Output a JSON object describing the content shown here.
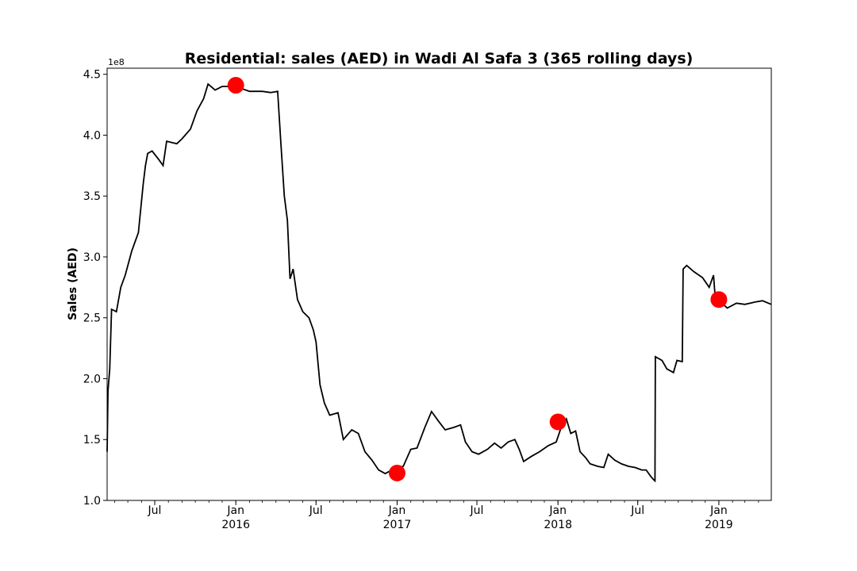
{
  "chart_data": {
    "type": "line",
    "title": "Residential: sales (AED) in Wadi Al Safa 3 (365 rolling days)",
    "ylabel": "Sales (AED)",
    "y_offset_label": "1e8",
    "ylim": [
      1.0,
      4.55
    ],
    "xlim": [
      "2015-03-15",
      "2019-04-30"
    ],
    "yticks": [
      {
        "value": 1.0,
        "label": "1.0"
      },
      {
        "value": 1.5,
        "label": "1.5"
      },
      {
        "value": 2.0,
        "label": "2.0"
      },
      {
        "value": 2.5,
        "label": "2.5"
      },
      {
        "value": 3.0,
        "label": "3.0"
      },
      {
        "value": 3.5,
        "label": "3.5"
      },
      {
        "value": 4.0,
        "label": "4.0"
      },
      {
        "value": 4.5,
        "label": "4.5"
      }
    ],
    "xticks": [
      {
        "date": "2015-07-01",
        "label": "Jul",
        "sublabel": ""
      },
      {
        "date": "2016-01-01",
        "label": "Jan",
        "sublabel": "2016"
      },
      {
        "date": "2016-07-01",
        "label": "Jul",
        "sublabel": ""
      },
      {
        "date": "2017-01-01",
        "label": "Jan",
        "sublabel": "2017"
      },
      {
        "date": "2017-07-01",
        "label": "Jul",
        "sublabel": ""
      },
      {
        "date": "2018-01-01",
        "label": "Jan",
        "sublabel": "2018"
      },
      {
        "date": "2018-07-01",
        "label": "Jul",
        "sublabel": ""
      },
      {
        "date": "2019-01-01",
        "label": "Jan",
        "sublabel": "2019"
      }
    ],
    "series": [
      {
        "color": "#000000",
        "points": [
          [
            "2015-03-15",
            1.4
          ],
          [
            "2015-03-17",
            1.9
          ],
          [
            "2015-03-21",
            2.08
          ],
          [
            "2015-03-25",
            2.57
          ],
          [
            "2015-04-05",
            2.55
          ],
          [
            "2015-04-15",
            2.75
          ],
          [
            "2015-04-25",
            2.85
          ],
          [
            "2015-05-10",
            3.05
          ],
          [
            "2015-05-25",
            3.2
          ],
          [
            "2015-06-05",
            3.6
          ],
          [
            "2015-06-10",
            3.75
          ],
          [
            "2015-06-15",
            3.85
          ],
          [
            "2015-06-25",
            3.87
          ],
          [
            "2015-07-10",
            3.8
          ],
          [
            "2015-07-20",
            3.75
          ],
          [
            "2015-07-28",
            3.95
          ],
          [
            "2015-08-20",
            3.93
          ],
          [
            "2015-09-01",
            3.97
          ],
          [
            "2015-09-20",
            4.05
          ],
          [
            "2015-10-05",
            4.2
          ],
          [
            "2015-10-20",
            4.3
          ],
          [
            "2015-10-30",
            4.42
          ],
          [
            "2015-11-15",
            4.37
          ],
          [
            "2015-12-01",
            4.4
          ],
          [
            "2016-01-01",
            4.4
          ],
          [
            "2016-02-01",
            4.36
          ],
          [
            "2016-03-01",
            4.36
          ],
          [
            "2016-03-20",
            4.35
          ],
          [
            "2016-04-05",
            4.36
          ],
          [
            "2016-04-12",
            3.95
          ],
          [
            "2016-04-20",
            3.5
          ],
          [
            "2016-04-27",
            3.3
          ],
          [
            "2016-05-03",
            2.82
          ],
          [
            "2016-05-10",
            2.9
          ],
          [
            "2016-05-20",
            2.65
          ],
          [
            "2016-06-01",
            2.55
          ],
          [
            "2016-06-15",
            2.5
          ],
          [
            "2016-06-25",
            2.4
          ],
          [
            "2016-07-01",
            2.3
          ],
          [
            "2016-07-10",
            1.95
          ],
          [
            "2016-07-20",
            1.8
          ],
          [
            "2016-08-01",
            1.7
          ],
          [
            "2016-08-20",
            1.72
          ],
          [
            "2016-09-01",
            1.5
          ],
          [
            "2016-09-20",
            1.58
          ],
          [
            "2016-10-05",
            1.55
          ],
          [
            "2016-10-20",
            1.4
          ],
          [
            "2016-11-05",
            1.33
          ],
          [
            "2016-11-20",
            1.25
          ],
          [
            "2016-12-05",
            1.22
          ],
          [
            "2016-12-20",
            1.25
          ],
          [
            "2017-01-01",
            1.27
          ],
          [
            "2017-01-15",
            1.28
          ],
          [
            "2017-02-01",
            1.42
          ],
          [
            "2017-02-15",
            1.43
          ],
          [
            "2017-03-05",
            1.6
          ],
          [
            "2017-03-20",
            1.73
          ],
          [
            "2017-04-05",
            1.65
          ],
          [
            "2017-04-20",
            1.58
          ],
          [
            "2017-05-10",
            1.6
          ],
          [
            "2017-05-25",
            1.62
          ],
          [
            "2017-06-05",
            1.48
          ],
          [
            "2017-06-20",
            1.4
          ],
          [
            "2017-07-05",
            1.38
          ],
          [
            "2017-07-25",
            1.42
          ],
          [
            "2017-08-10",
            1.47
          ],
          [
            "2017-08-25",
            1.43
          ],
          [
            "2017-09-10",
            1.48
          ],
          [
            "2017-09-25",
            1.5
          ],
          [
            "2017-10-05",
            1.42
          ],
          [
            "2017-10-15",
            1.32
          ],
          [
            "2017-11-01",
            1.36
          ],
          [
            "2017-11-20",
            1.4
          ],
          [
            "2017-12-10",
            1.45
          ],
          [
            "2017-12-28",
            1.48
          ],
          [
            "2018-01-10",
            1.62
          ],
          [
            "2018-01-20",
            1.67
          ],
          [
            "2018-01-30",
            1.55
          ],
          [
            "2018-02-10",
            1.57
          ],
          [
            "2018-02-20",
            1.4
          ],
          [
            "2018-03-05",
            1.35
          ],
          [
            "2018-03-15",
            1.3
          ],
          [
            "2018-04-01",
            1.28
          ],
          [
            "2018-04-15",
            1.27
          ],
          [
            "2018-04-25",
            1.38
          ],
          [
            "2018-05-10",
            1.33
          ],
          [
            "2018-05-25",
            1.3
          ],
          [
            "2018-06-10",
            1.28
          ],
          [
            "2018-06-25",
            1.27
          ],
          [
            "2018-07-10",
            1.25
          ],
          [
            "2018-07-20",
            1.25
          ],
          [
            "2018-07-30",
            1.2
          ],
          [
            "2018-08-06",
            1.17
          ],
          [
            "2018-08-09",
            1.16
          ],
          [
            "2018-08-10",
            2.18
          ],
          [
            "2018-08-25",
            2.15
          ],
          [
            "2018-09-05",
            2.08
          ],
          [
            "2018-09-20",
            2.05
          ],
          [
            "2018-09-28",
            2.15
          ],
          [
            "2018-10-10",
            2.14
          ],
          [
            "2018-10-12",
            2.9
          ],
          [
            "2018-10-20",
            2.93
          ],
          [
            "2018-11-05",
            2.88
          ],
          [
            "2018-11-25",
            2.83
          ],
          [
            "2018-12-10",
            2.75
          ],
          [
            "2018-12-20",
            2.85
          ],
          [
            "2018-12-24",
            2.65
          ],
          [
            "2019-01-05",
            2.63
          ],
          [
            "2019-01-20",
            2.58
          ],
          [
            "2019-02-10",
            2.62
          ],
          [
            "2019-03-01",
            2.61
          ],
          [
            "2019-03-25",
            2.63
          ],
          [
            "2019-04-10",
            2.64
          ],
          [
            "2019-04-30",
            2.61
          ]
        ]
      }
    ],
    "markers": {
      "color": "#ff0000",
      "points": [
        [
          "2016-01-01",
          4.41
        ],
        [
          "2017-01-01",
          1.225
        ],
        [
          "2018-01-01",
          1.645
        ],
        [
          "2019-01-01",
          2.65
        ]
      ]
    },
    "grid": false,
    "legend": "none"
  }
}
